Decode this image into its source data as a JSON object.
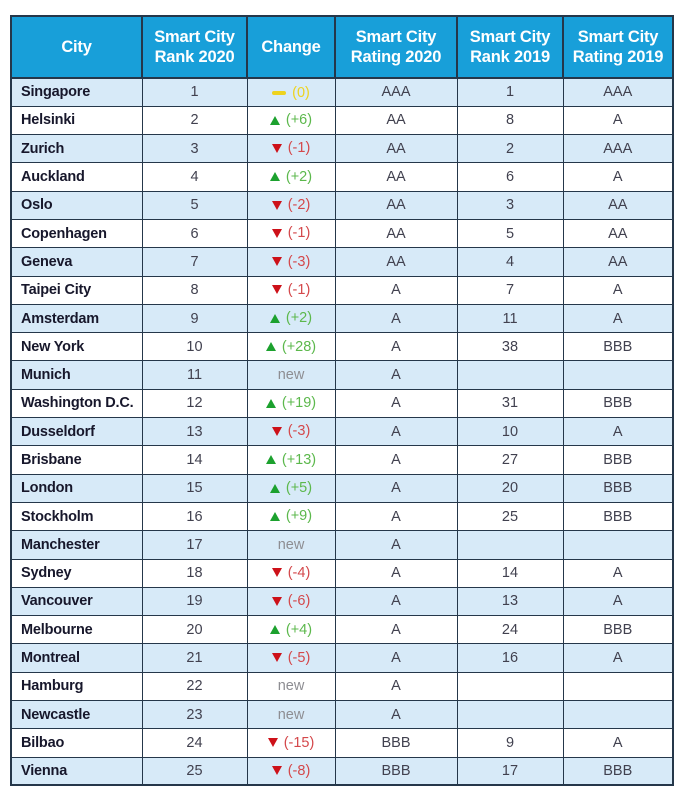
{
  "colors": {
    "header_bg": "#189fd9",
    "row_alt": "#d7eaf8",
    "border": "#25374a",
    "city_text": "#17172b",
    "value_text": "#41414f",
    "green_icon": "#1ca12e",
    "green_text": "#5cb84c",
    "red_icon": "#cd1119",
    "red_text": "#d4484b",
    "yellow": "#eed31e",
    "new_gray": "#8d8d92"
  },
  "chart_data": {
    "type": "table",
    "columns": [
      {
        "id": "city",
        "lines": [
          "City"
        ]
      },
      {
        "id": "rank_2020",
        "lines": [
          "Smart City",
          "Rank 2020"
        ]
      },
      {
        "id": "change",
        "lines": [
          "Change"
        ]
      },
      {
        "id": "rating_2020",
        "lines": [
          "Smart City",
          "Rating 2020"
        ]
      },
      {
        "id": "rank_2019",
        "lines": [
          "Smart City",
          "Rank 2019"
        ]
      },
      {
        "id": "rating_2019",
        "lines": [
          "Smart City",
          "Rating 2019"
        ]
      }
    ],
    "rows": [
      {
        "city": "Singapore",
        "rank_2020": "1",
        "change": {
          "direction": "same",
          "label": "(0)"
        },
        "rating_2020": "AAA",
        "rank_2019": "1",
        "rating_2019": "AAA"
      },
      {
        "city": "Helsinki",
        "rank_2020": "2",
        "change": {
          "direction": "up",
          "label": "(+6)"
        },
        "rating_2020": "AA",
        "rank_2019": "8",
        "rating_2019": "A"
      },
      {
        "city": "Zurich",
        "rank_2020": "3",
        "change": {
          "direction": "down",
          "label": "(-1)"
        },
        "rating_2020": "AA",
        "rank_2019": "2",
        "rating_2019": "AAA"
      },
      {
        "city": "Auckland",
        "rank_2020": "4",
        "change": {
          "direction": "up",
          "label": "(+2)"
        },
        "rating_2020": "AA",
        "rank_2019": "6",
        "rating_2019": "A"
      },
      {
        "city": "Oslo",
        "rank_2020": "5",
        "change": {
          "direction": "down",
          "label": "(-2)"
        },
        "rating_2020": "AA",
        "rank_2019": "3",
        "rating_2019": "AA"
      },
      {
        "city": "Copenhagen",
        "rank_2020": "6",
        "change": {
          "direction": "down",
          "label": "(-1)"
        },
        "rating_2020": "AA",
        "rank_2019": "5",
        "rating_2019": "AA"
      },
      {
        "city": "Geneva",
        "rank_2020": "7",
        "change": {
          "direction": "down",
          "label": "(-3)"
        },
        "rating_2020": "AA",
        "rank_2019": "4",
        "rating_2019": "AA"
      },
      {
        "city": "Taipei City",
        "rank_2020": "8",
        "change": {
          "direction": "down",
          "label": "(-1)"
        },
        "rating_2020": "A",
        "rank_2019": "7",
        "rating_2019": "A"
      },
      {
        "city": "Amsterdam",
        "rank_2020": "9",
        "change": {
          "direction": "up",
          "label": "(+2)"
        },
        "rating_2020": "A",
        "rank_2019": "11",
        "rating_2019": "A"
      },
      {
        "city": "New York",
        "rank_2020": "10",
        "change": {
          "direction": "up",
          "label": "(+28)"
        },
        "rating_2020": "A",
        "rank_2019": "38",
        "rating_2019": "BBB"
      },
      {
        "city": "Munich",
        "rank_2020": "11",
        "change": {
          "direction": "new",
          "label": "new"
        },
        "rating_2020": "A",
        "rank_2019": "",
        "rating_2019": ""
      },
      {
        "city": "Washington D.C.",
        "rank_2020": "12",
        "change": {
          "direction": "up",
          "label": "(+19)"
        },
        "rating_2020": "A",
        "rank_2019": "31",
        "rating_2019": "BBB"
      },
      {
        "city": "Dusseldorf",
        "rank_2020": "13",
        "change": {
          "direction": "down",
          "label": "(-3)"
        },
        "rating_2020": "A",
        "rank_2019": "10",
        "rating_2019": "A"
      },
      {
        "city": "Brisbane",
        "rank_2020": "14",
        "change": {
          "direction": "up",
          "label": "(+13)"
        },
        "rating_2020": "A",
        "rank_2019": "27",
        "rating_2019": "BBB"
      },
      {
        "city": "London",
        "rank_2020": "15",
        "change": {
          "direction": "up",
          "label": "(+5)"
        },
        "rating_2020": "A",
        "rank_2019": "20",
        "rating_2019": "BBB"
      },
      {
        "city": "Stockholm",
        "rank_2020": "16",
        "change": {
          "direction": "up",
          "label": "(+9)"
        },
        "rating_2020": "A",
        "rank_2019": "25",
        "rating_2019": "BBB"
      },
      {
        "city": "Manchester",
        "rank_2020": "17",
        "change": {
          "direction": "new",
          "label": "new"
        },
        "rating_2020": "A",
        "rank_2019": "",
        "rating_2019": ""
      },
      {
        "city": "Sydney",
        "rank_2020": "18",
        "change": {
          "direction": "down",
          "label": "(-4)"
        },
        "rating_2020": "A",
        "rank_2019": "14",
        "rating_2019": "A"
      },
      {
        "city": "Vancouver",
        "rank_2020": "19",
        "change": {
          "direction": "down",
          "label": "(-6)"
        },
        "rating_2020": "A",
        "rank_2019": "13",
        "rating_2019": "A"
      },
      {
        "city": "Melbourne",
        "rank_2020": "20",
        "change": {
          "direction": "up",
          "label": "(+4)"
        },
        "rating_2020": "A",
        "rank_2019": "24",
        "rating_2019": "BBB"
      },
      {
        "city": "Montreal",
        "rank_2020": "21",
        "change": {
          "direction": "down",
          "label": "(-5)"
        },
        "rating_2020": "A",
        "rank_2019": "16",
        "rating_2019": "A"
      },
      {
        "city": "Hamburg",
        "rank_2020": "22",
        "change": {
          "direction": "new",
          "label": "new"
        },
        "rating_2020": "A",
        "rank_2019": "",
        "rating_2019": ""
      },
      {
        "city": "Newcastle",
        "rank_2020": "23",
        "change": {
          "direction": "new",
          "label": "new"
        },
        "rating_2020": "A",
        "rank_2019": "",
        "rating_2019": ""
      },
      {
        "city": "Bilbao",
        "rank_2020": "24",
        "change": {
          "direction": "down",
          "label": "(-15)"
        },
        "rating_2020": "BBB",
        "rank_2019": "9",
        "rating_2019": "A"
      },
      {
        "city": "Vienna",
        "rank_2020": "25",
        "change": {
          "direction": "down",
          "label": "(-8)"
        },
        "rating_2020": "BBB",
        "rank_2019": "17",
        "rating_2019": "BBB"
      }
    ]
  }
}
